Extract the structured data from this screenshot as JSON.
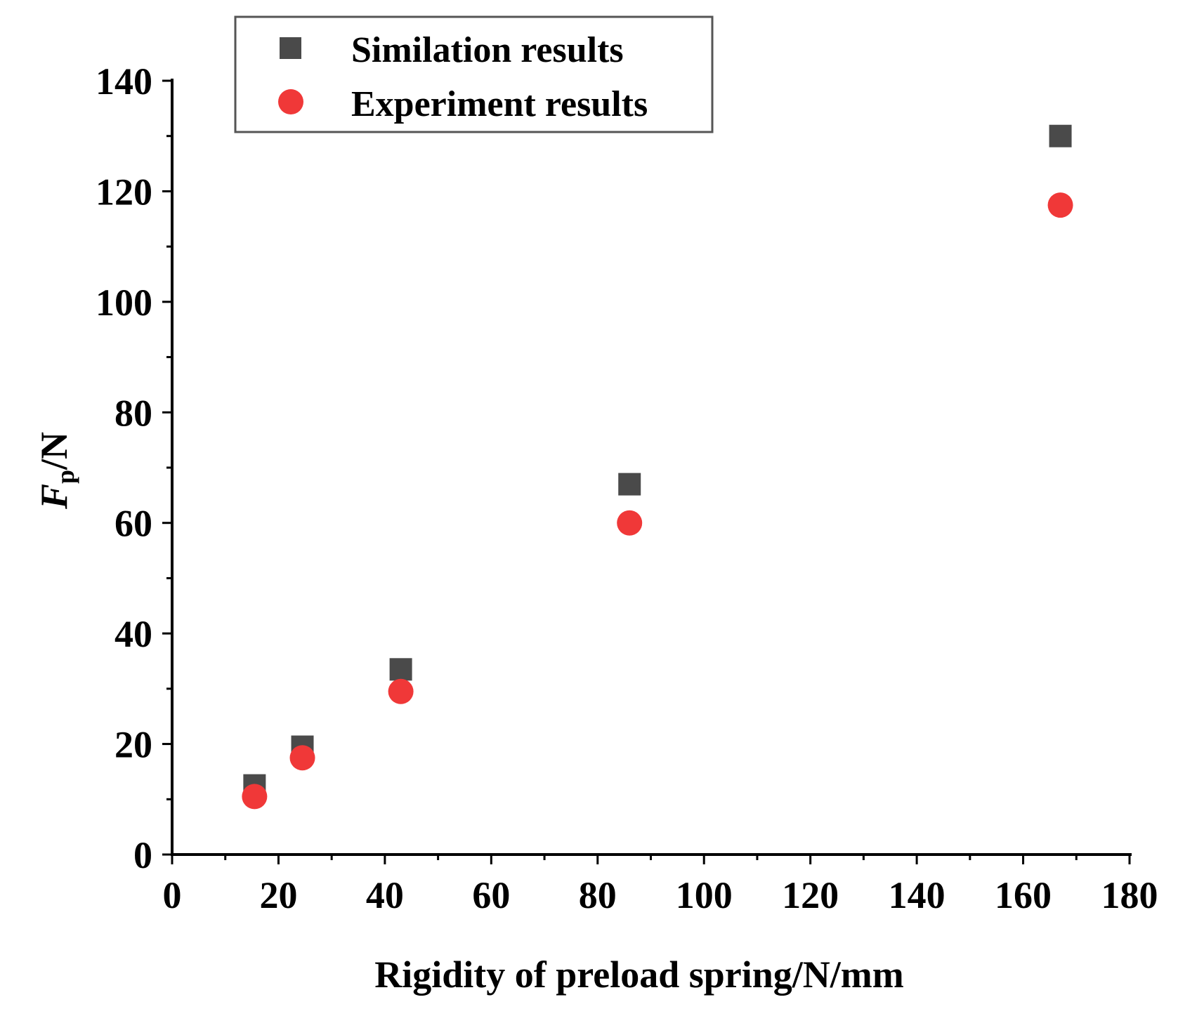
{
  "chart_data": {
    "type": "scatter",
    "title": "",
    "xlabel": "Rigidity of preload spring/N/mm",
    "ylabel_main": "F",
    "ylabel_sub": "p",
    "ylabel_unit": "/N",
    "xlim": [
      0,
      180
    ],
    "ylim": [
      0,
      140
    ],
    "xticks": [
      0,
      20,
      40,
      60,
      80,
      100,
      120,
      140,
      160,
      180
    ],
    "yticks": [
      0,
      20,
      40,
      60,
      80,
      100,
      120,
      140
    ],
    "grid": false,
    "legend_position": "top-left",
    "series": [
      {
        "name": "Similation results",
        "marker": "square",
        "color": "#4a4a4a",
        "x": [
          15.5,
          24.5,
          43,
          86,
          167
        ],
        "y": [
          12.5,
          19.5,
          33.5,
          67,
          130
        ]
      },
      {
        "name": "Experiment results",
        "marker": "circle",
        "color": "#f03838",
        "x": [
          15.5,
          24.5,
          43,
          86,
          167
        ],
        "y": [
          10.5,
          17.5,
          29.5,
          60,
          117.5
        ]
      }
    ]
  }
}
